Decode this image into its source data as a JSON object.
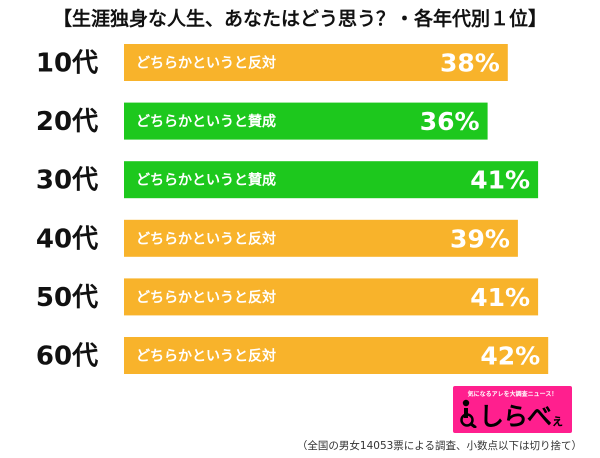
{
  "chart_data": {
    "type": "bar",
    "title": "【生涯独身な人生、あなたはどう思う？・各年代別１位】",
    "categories": [
      "10代",
      "20代",
      "30代",
      "40代",
      "50代",
      "60代"
    ],
    "answers": [
      "どちらかというと反対",
      "どちらかというと賛成",
      "どちらかというと賛成",
      "どちらかというと反対",
      "どちらかというと反対",
      "どちらかというと反対"
    ],
    "values": [
      38,
      36,
      41,
      39,
      41,
      42
    ],
    "value_labels": [
      "38%",
      "36%",
      "41%",
      "39%",
      "41%",
      "42%"
    ],
    "colors": {
      "どちらかというと反対": "#f8b32b",
      "どちらかというと賛成": "#1dc81d"
    },
    "orientation": "horizontal",
    "grid": false,
    "legend": "none"
  },
  "logo": {
    "tagline": "気になるアレを大調査ニュース！",
    "name": "しらべ",
    "suffix": "ぇ",
    "colors": {
      "background": "#ff1f8e",
      "text": "#000000"
    }
  },
  "footnote": "（全国の男女14053票による調査、小数点以下は切り捨て）"
}
